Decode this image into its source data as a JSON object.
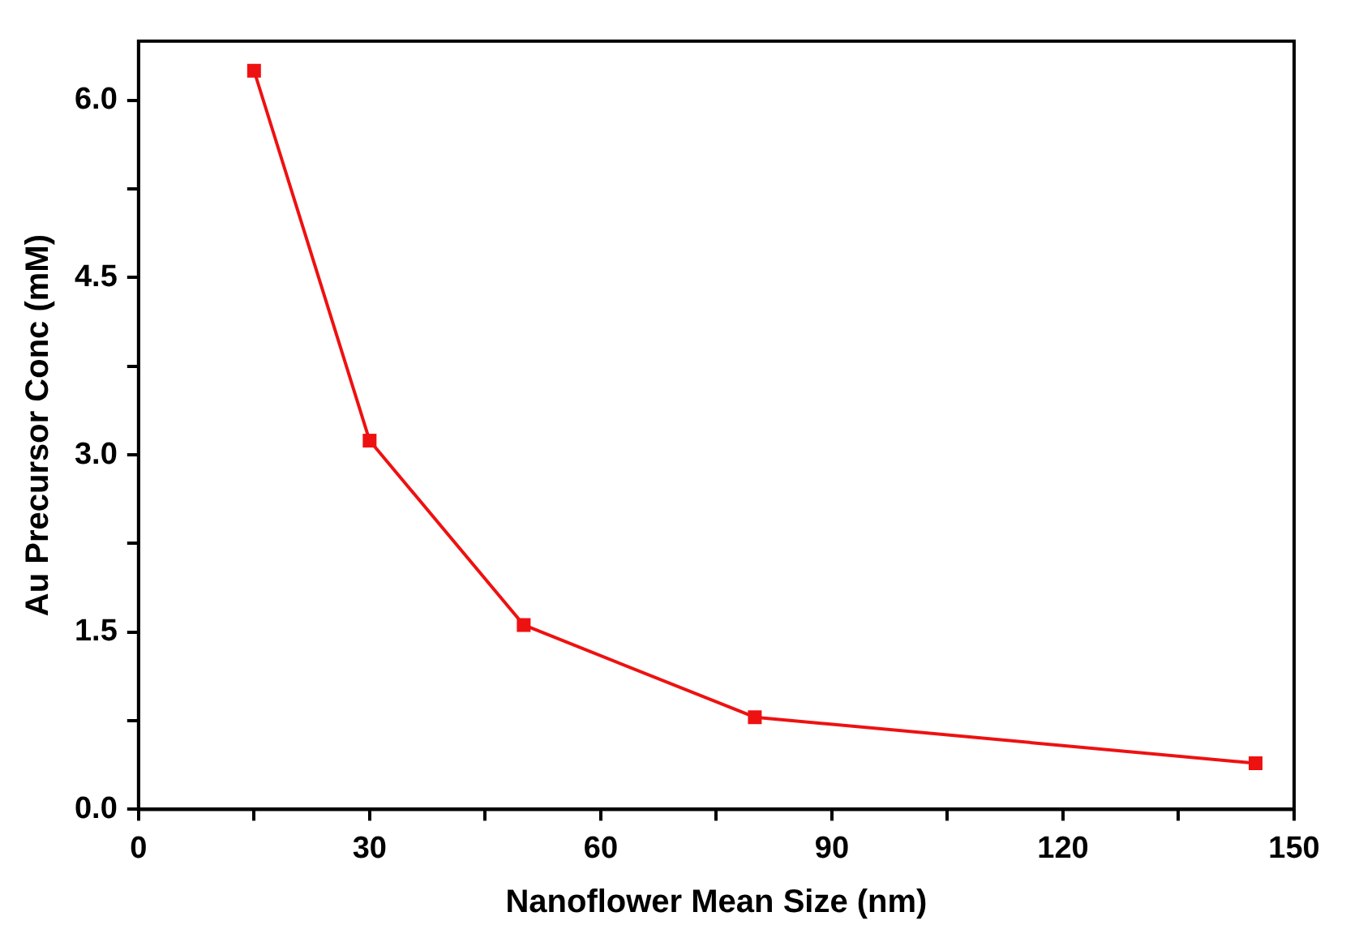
{
  "chart_data": {
    "type": "line",
    "xlabel": "Nanoflower Mean Size (nm)",
    "ylabel": "Au Precursor Conc (mM)",
    "x": [
      15,
      30,
      50,
      80,
      145
    ],
    "series": [
      {
        "color": "#ee1111",
        "values": [
          6.25,
          3.12,
          1.56,
          0.78,
          0.39
        ]
      }
    ],
    "xlim": [
      0,
      150
    ],
    "xticks": [
      0,
      {
        "value": 15,
        "label": null
      },
      30,
      {
        "value": 45,
        "label": null
      },
      60,
      {
        "value": 75,
        "label": null
      },
      90,
      {
        "value": 105,
        "label": null
      },
      120,
      {
        "value": 135,
        "label": null
      },
      150
    ],
    "ylim": [
      0,
      6.5
    ],
    "yticks": [
      {
        "value": 0,
        "label": "0.0"
      },
      {
        "value": 0.75,
        "label": null
      },
      1.5,
      {
        "value": 2.25,
        "label": null
      },
      {
        "value": 3,
        "label": "3.0"
      },
      {
        "value": 3.75,
        "label": null
      },
      4.5,
      {
        "value": 5.25,
        "label": null
      },
      {
        "value": 6,
        "label": "6.0"
      }
    ],
    "grid": false,
    "legend": false,
    "marker": "square",
    "line_style": "solid"
  }
}
